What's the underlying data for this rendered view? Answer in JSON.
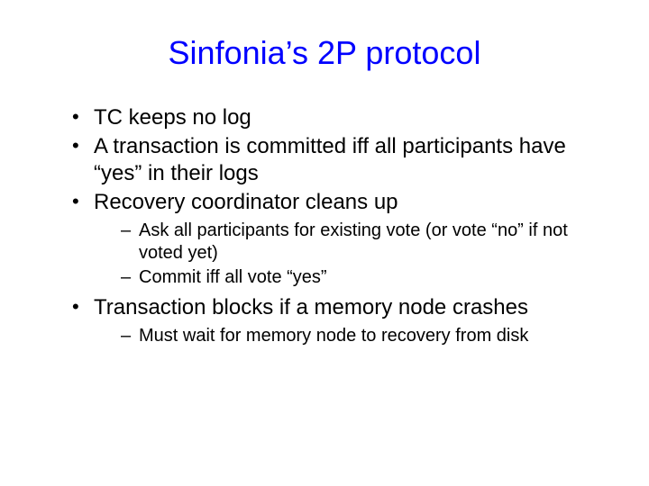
{
  "slide": {
    "title": "Sinfonia’s 2P protocol",
    "title_color": "#0000ff",
    "title_fontsize": 36,
    "body_color": "#000000",
    "body_fontsize_l1": 24,
    "body_fontsize_l2": 20,
    "background_color": "#ffffff",
    "bullets": [
      {
        "text": "TC keeps no log",
        "children": []
      },
      {
        "text": "A transaction is committed iff all participants have “yes” in their logs",
        "children": []
      },
      {
        "text": "Recovery coordinator cleans up",
        "children": [
          {
            "text": "Ask all participants for existing vote (or vote “no” if not voted yet)"
          },
          {
            "text": "Commit iff all vote “yes”"
          }
        ]
      },
      {
        "text": "Transaction blocks if a memory node crashes",
        "children": [
          {
            "text": "Must wait for memory node to recovery from disk"
          }
        ]
      }
    ]
  }
}
